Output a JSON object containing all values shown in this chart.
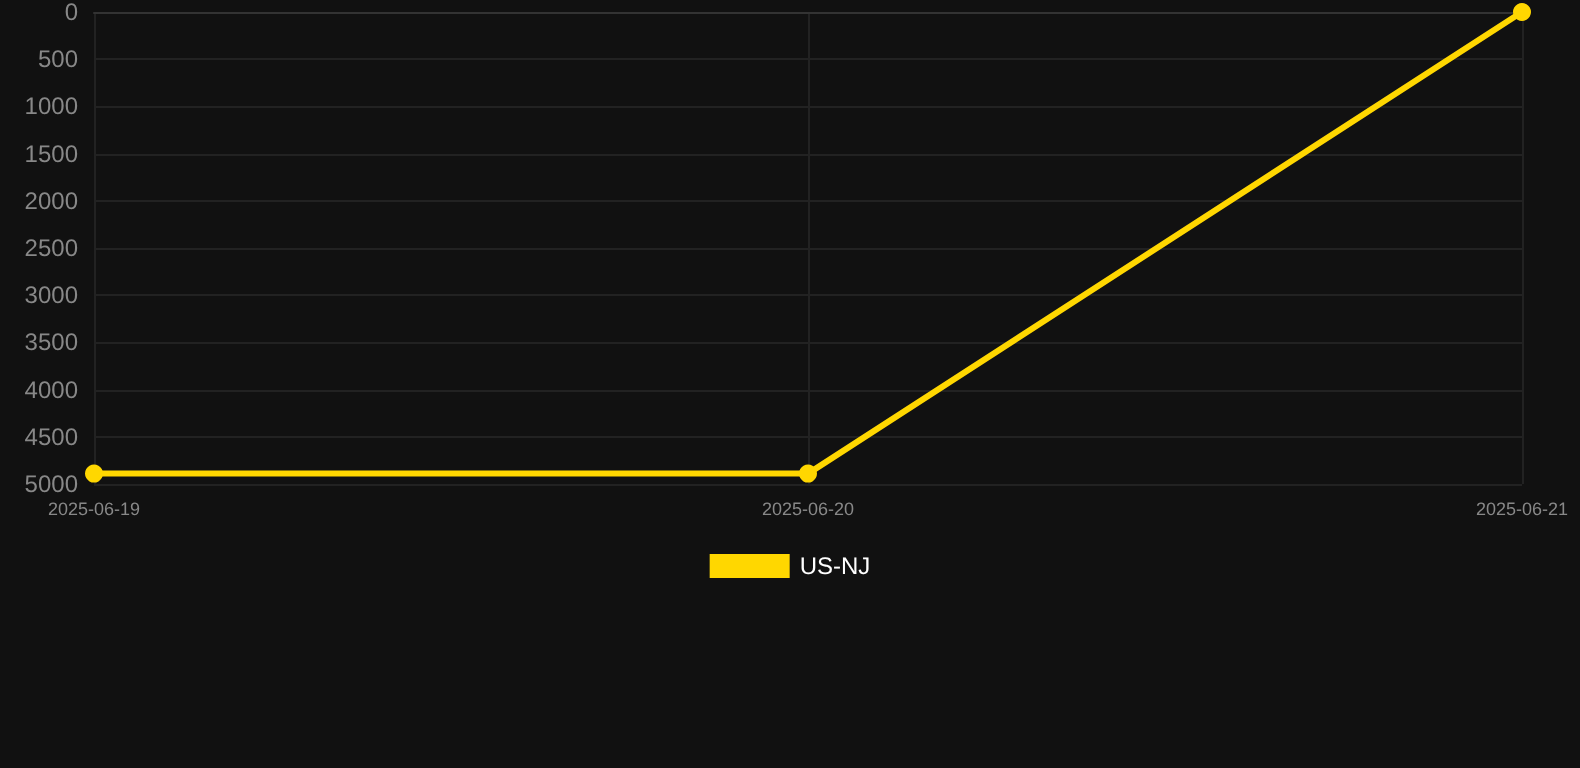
{
  "chart_data": {
    "type": "line",
    "categories": [
      "2025-06-19",
      "2025-06-20",
      "2025-06-21"
    ],
    "series": [
      {
        "name": "US-NJ",
        "color": "#ffd700",
        "values": [
          4890,
          4890,
          0
        ]
      }
    ],
    "ylim": [
      5000,
      0
    ],
    "yticks": [
      0,
      500,
      1000,
      1500,
      2000,
      2500,
      3000,
      3500,
      4000,
      4500,
      5000
    ],
    "grid": true,
    "legend": "bottom",
    "marker": "circle",
    "line_style": "solid"
  }
}
